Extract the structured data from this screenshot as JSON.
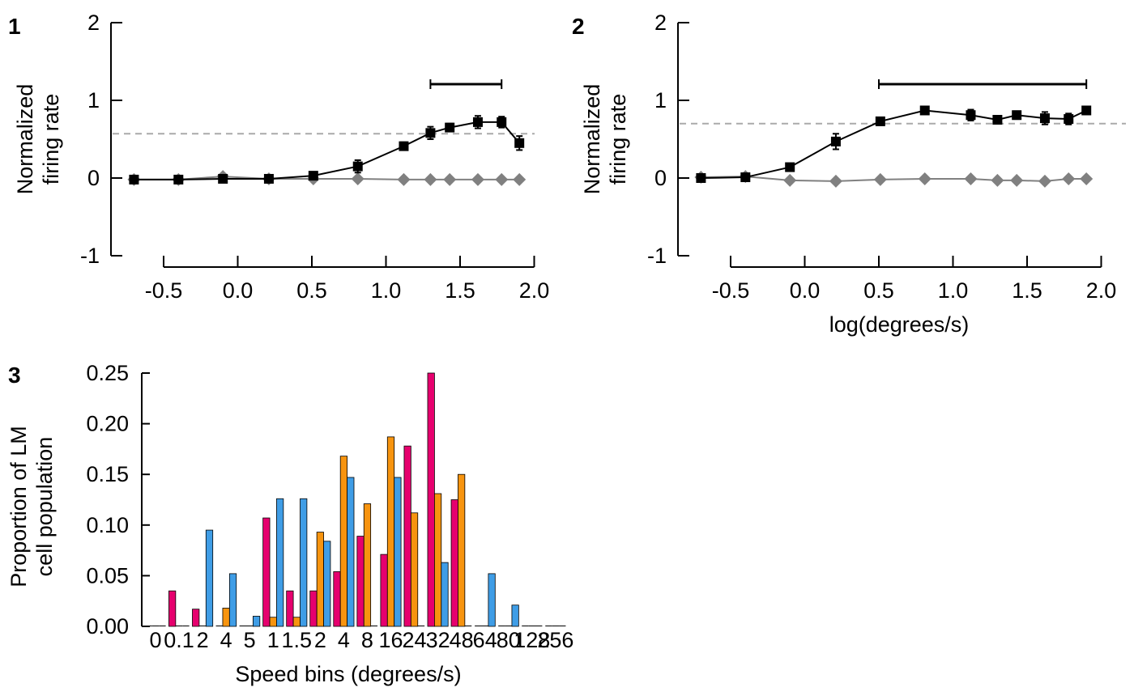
{
  "chart_data": [
    {
      "panel_label": "1",
      "type": "line",
      "ylabel_lines": [
        "Normalized",
        "firing rate"
      ],
      "xlabel": "",
      "ylim": [
        -1,
        2
      ],
      "xlim": [
        -0.75,
        1.97
      ],
      "y_ticks": [
        "2",
        "1",
        "0",
        "-1"
      ],
      "x_ticks": [
        "-0.5",
        "0.0",
        "0.5",
        "1.0",
        "1.5",
        "2.0"
      ],
      "reference_line": 0.57,
      "bracket": [
        1.3,
        1.78
      ],
      "series": [
        {
          "marker": "square",
          "color": "#000000",
          "x": [
            -0.7,
            -0.4,
            -0.1,
            0.21,
            0.51,
            0.81,
            1.12,
            1.3,
            1.43,
            1.62,
            1.78,
            1.9
          ],
          "y": [
            -0.02,
            -0.02,
            -0.01,
            -0.01,
            0.03,
            0.15,
            0.41,
            0.58,
            0.65,
            0.72,
            0.72,
            0.45
          ],
          "err": [
            0.03,
            0.03,
            0.03,
            0.03,
            0.03,
            0.08,
            0.05,
            0.08,
            0.05,
            0.08,
            0.07,
            0.09
          ]
        },
        {
          "marker": "diamond",
          "color": "#808080",
          "x": [
            -0.7,
            -0.4,
            -0.1,
            0.21,
            0.51,
            0.81,
            1.12,
            1.3,
            1.43,
            1.62,
            1.78,
            1.9
          ],
          "y": [
            -0.02,
            -0.02,
            0.02,
            -0.01,
            -0.01,
            -0.01,
            -0.02,
            -0.02,
            -0.02,
            -0.02,
            -0.02,
            -0.02
          ]
        }
      ]
    },
    {
      "panel_label": "2",
      "type": "line",
      "ylabel_lines": [
        "Normalized",
        "firing rate"
      ],
      "xlabel": "log(degrees/s)",
      "ylim": [
        -1,
        2
      ],
      "xlim": [
        -0.75,
        1.97
      ],
      "y_ticks": [
        "2",
        "1",
        "0",
        "-1"
      ],
      "x_ticks": [
        "-0.5",
        "0.0",
        "0.5",
        "1.0",
        "1.5",
        "2.0"
      ],
      "reference_line": 0.7,
      "bracket": [
        0.5,
        1.9
      ],
      "series": [
        {
          "marker": "square",
          "color": "#000000",
          "x": [
            -0.7,
            -0.4,
            -0.1,
            0.21,
            0.51,
            0.81,
            1.12,
            1.3,
            1.43,
            1.62,
            1.78,
            1.9
          ],
          "y": [
            0.0,
            0.01,
            0.14,
            0.47,
            0.73,
            0.87,
            0.81,
            0.75,
            0.81,
            0.77,
            0.76,
            0.87
          ],
          "err": [
            0.03,
            0.03,
            0.04,
            0.1,
            0.03,
            0.03,
            0.07,
            0.05,
            0.05,
            0.08,
            0.07,
            0.05
          ]
        },
        {
          "marker": "diamond",
          "color": "#808080",
          "x": [
            -0.7,
            -0.4,
            -0.1,
            0.21,
            0.51,
            0.81,
            1.12,
            1.3,
            1.43,
            1.62,
            1.78,
            1.9
          ],
          "y": [
            0.01,
            0.02,
            -0.03,
            -0.04,
            -0.02,
            -0.01,
            -0.01,
            -0.03,
            -0.03,
            -0.04,
            -0.01,
            -0.01
          ]
        }
      ]
    },
    {
      "panel_label": "3",
      "type": "bar",
      "ylabel_lines": [
        "Proportion of LM",
        "cell population"
      ],
      "xlabel": "Speed bins (degrees/s)",
      "ylim": [
        0,
        0.25
      ],
      "y_ticks": [
        "0.25",
        "0.20",
        "0.15",
        "0.10",
        "0.05",
        "0.00"
      ],
      "categories": [
        "0",
        "0.1",
        "2",
        "4",
        "5",
        "1",
        "1.5",
        "2",
        "4",
        "8",
        "16",
        "24",
        "32",
        "48",
        "64",
        "80",
        "128",
        "256"
      ],
      "series": [
        {
          "color": "#e6006e",
          "values": [
            0.0,
            0.035,
            0.017,
            0.0,
            0.0,
            0.107,
            0.035,
            0.035,
            0.054,
            0.089,
            0.071,
            0.178,
            0.25,
            0.125,
            0.0,
            0.0,
            0.0,
            0.0
          ]
        },
        {
          "color": "#f7940f",
          "values": [
            0.0,
            0.0,
            0.0,
            0.018,
            0.0,
            0.009,
            0.009,
            0.093,
            0.168,
            0.121,
            0.187,
            0.112,
            0.131,
            0.15,
            0.0,
            0.0,
            0.0,
            0.0
          ]
        },
        {
          "color": "#3f9de6",
          "values": [
            0.0,
            0.0,
            0.095,
            0.052,
            0.01,
            0.126,
            0.126,
            0.084,
            0.147,
            0.0,
            0.147,
            0.0,
            0.063,
            0.0,
            0.052,
            0.021,
            0.0,
            0.0
          ]
        }
      ]
    }
  ]
}
